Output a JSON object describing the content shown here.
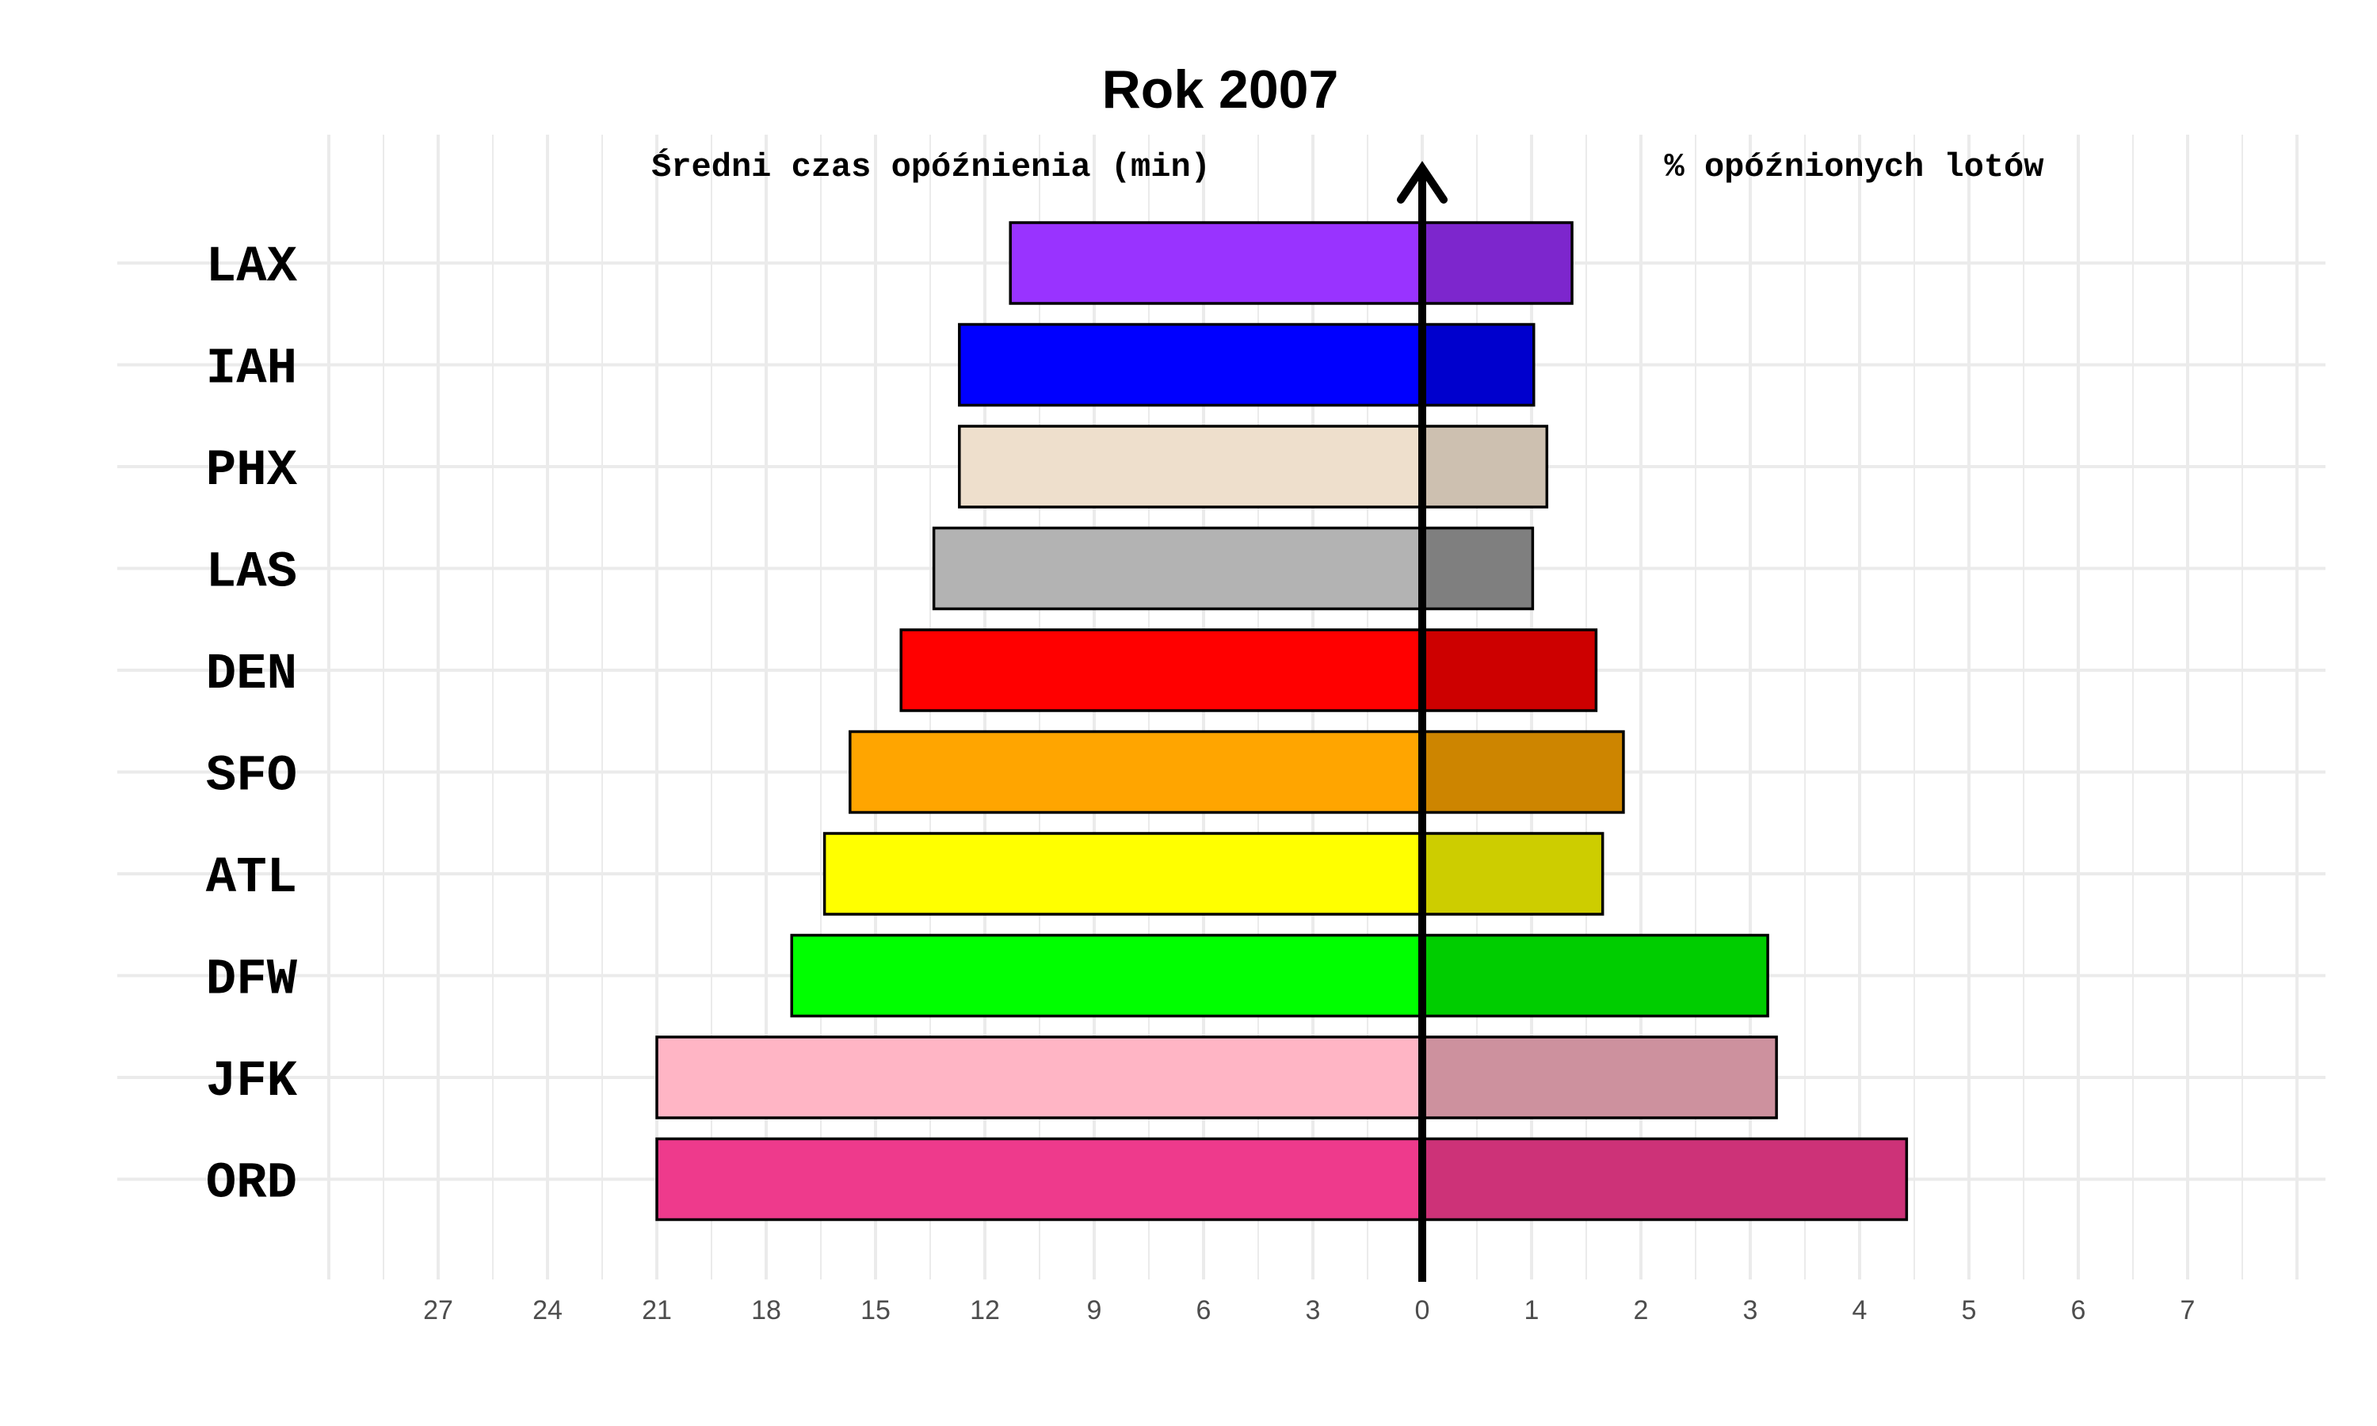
{
  "chart_data": {
    "type": "bar",
    "orientation": "horizontal-diverging",
    "title": "Rok 2007",
    "left_label": "Średni czas opóźnienia (min)",
    "right_label": "% opóźnionych lotów",
    "categories": [
      "LAX",
      "IAH",
      "PHX",
      "LAS",
      "DEN",
      "SFO",
      "ATL",
      "DFW",
      "JFK",
      "ORD"
    ],
    "series": [
      {
        "name": "Średni czas opóźnienia (min)",
        "side": "left",
        "values": [
          11.3,
          12.7,
          12.7,
          13.4,
          14.3,
          15.7,
          16.4,
          17.3,
          21.0,
          21.0
        ],
        "colors": [
          "#9933FF",
          "#0000FF",
          "#EEDFCC",
          "#B3B3B3",
          "#FF0000",
          "#FFA500",
          "#FFFF00",
          "#00FF00",
          "#FFB5C5",
          "#EE3A8C"
        ]
      },
      {
        "name": "% opóźnionych lotów",
        "side": "right",
        "values": [
          1.37,
          1.02,
          1.14,
          1.01,
          1.59,
          1.84,
          1.65,
          3.16,
          3.24,
          4.43
        ],
        "colors": [
          "#7D26CD",
          "#0000CD",
          "#CDC0B0",
          "#7F7F7F",
          "#CD0000",
          "#CD8500",
          "#CDCD00",
          "#00CD00",
          "#CD919E",
          "#CD3278"
        ]
      }
    ],
    "left_ticks": [
      "27",
      "24",
      "21",
      "18",
      "15",
      "12",
      "9",
      "6",
      "3",
      "0"
    ],
    "right_ticks": [
      "1",
      "2",
      "3",
      "4",
      "5",
      "6",
      "7"
    ],
    "left_xlim": [
      0,
      27
    ],
    "right_xlim": [
      0,
      7
    ],
    "grid": true
  }
}
